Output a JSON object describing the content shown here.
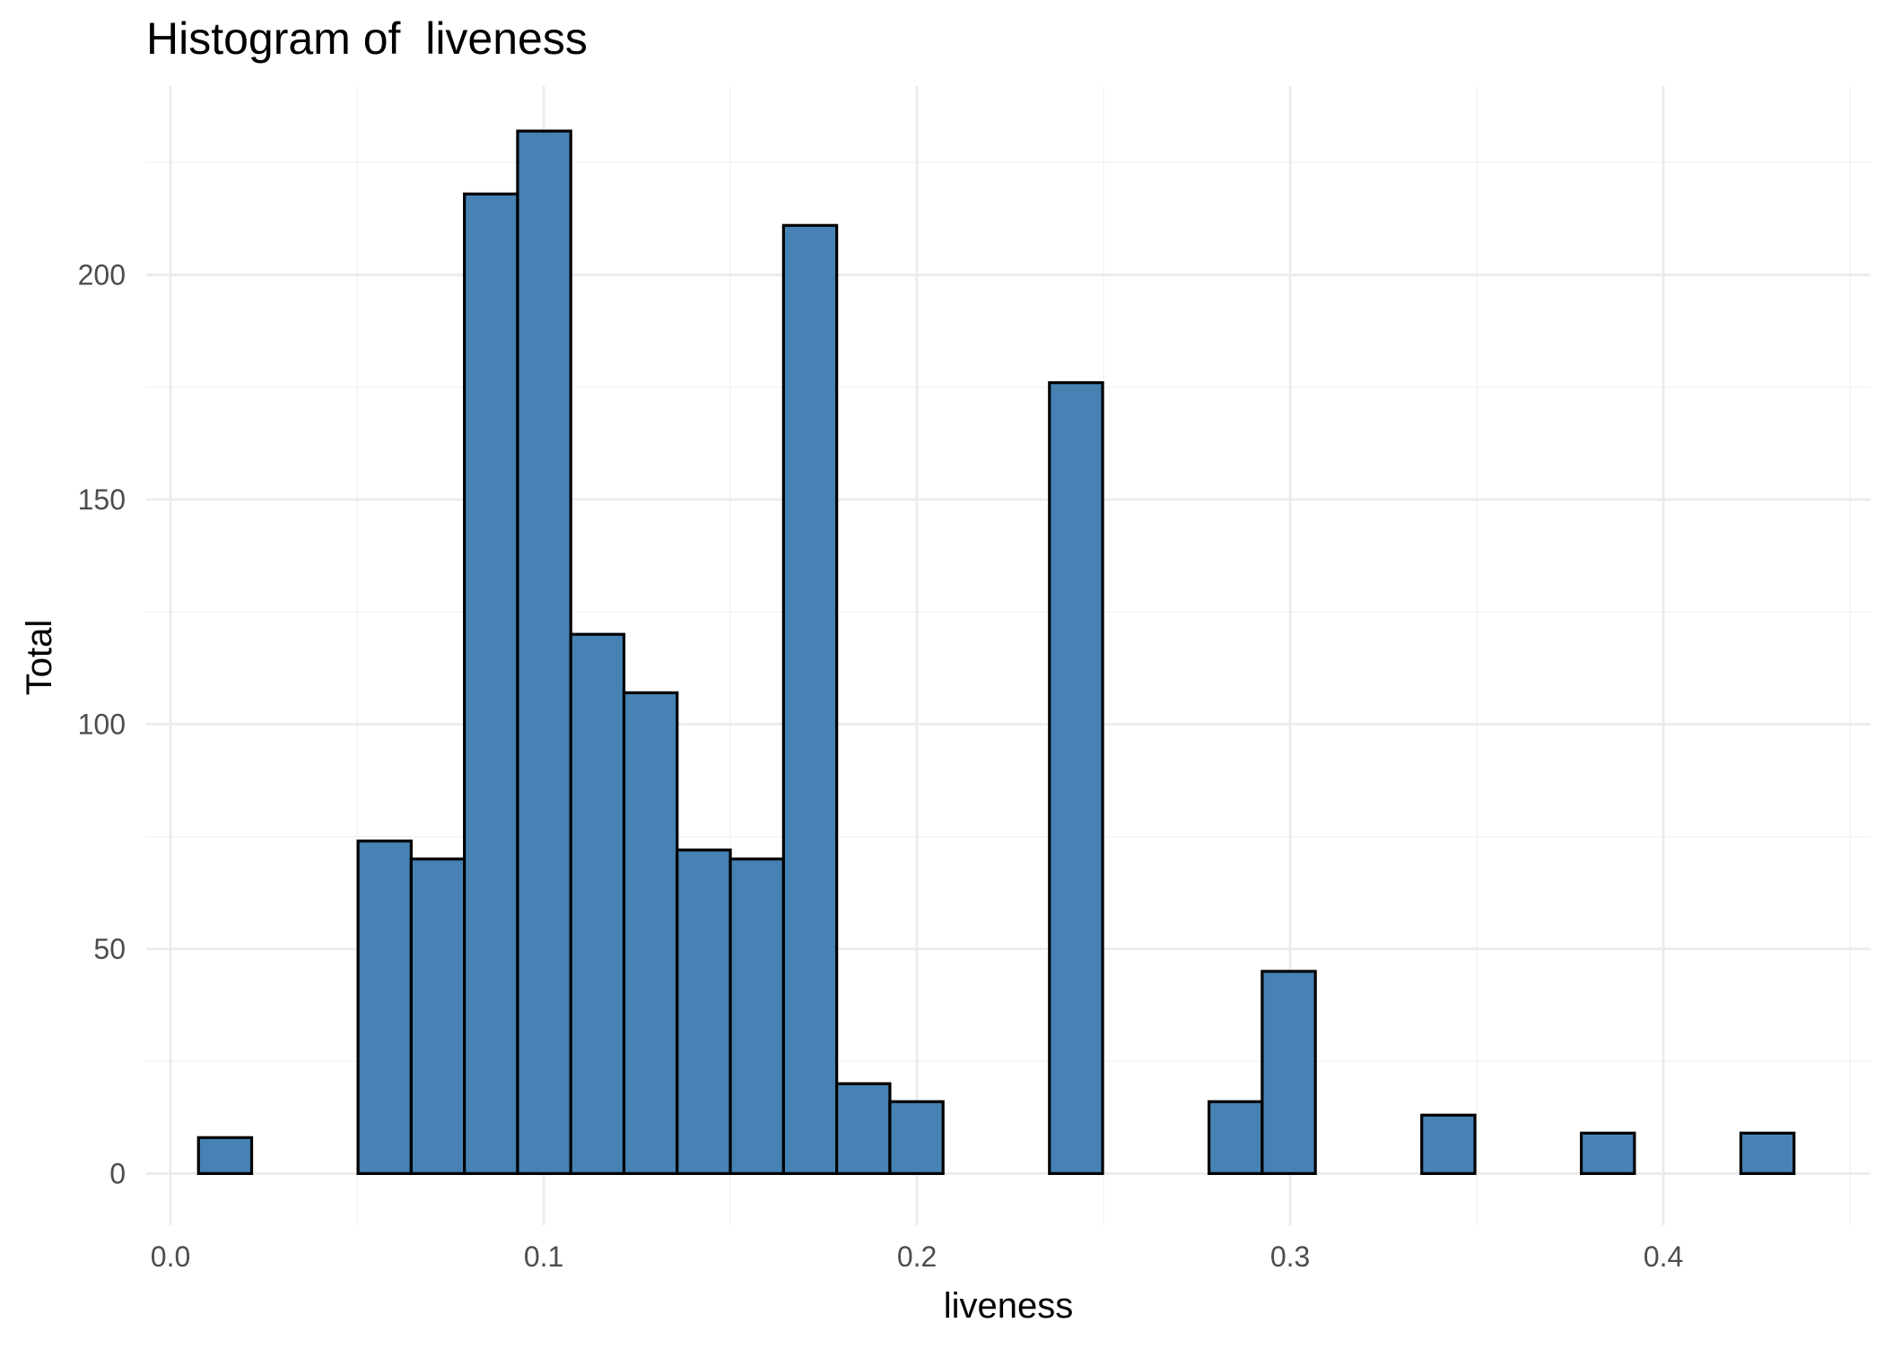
{
  "chart_data": {
    "type": "bar",
    "subtype": "histogram",
    "title": "Histogram of  liveness",
    "xlabel": "liveness",
    "ylabel": "Total",
    "xlim": [
      -0.0065,
      0.4555
    ],
    "ylim": [
      -11.5,
      242
    ],
    "x_ticks": [
      0.0,
      0.1,
      0.2,
      0.3,
      0.4
    ],
    "x_tick_labels": [
      "0.0",
      "0.1",
      "0.2",
      "0.3",
      "0.4"
    ],
    "y_ticks": [
      0,
      50,
      100,
      150,
      200
    ],
    "y_tick_labels": [
      "0",
      "50",
      "100",
      "150",
      "200"
    ],
    "bin_width": 0.01425,
    "bins": [
      {
        "xmin": 0.0075,
        "xmax": 0.02175,
        "count": 8
      },
      {
        "xmin": 0.02175,
        "xmax": 0.036,
        "count": 0
      },
      {
        "xmin": 0.036,
        "xmax": 0.05025,
        "count": 0
      },
      {
        "xmin": 0.05025,
        "xmax": 0.0645,
        "count": 74
      },
      {
        "xmin": 0.0645,
        "xmax": 0.07875,
        "count": 70
      },
      {
        "xmin": 0.07875,
        "xmax": 0.093,
        "count": 218
      },
      {
        "xmin": 0.093,
        "xmax": 0.10725,
        "count": 232
      },
      {
        "xmin": 0.10725,
        "xmax": 0.1215,
        "count": 120
      },
      {
        "xmin": 0.1215,
        "xmax": 0.13575,
        "count": 107
      },
      {
        "xmin": 0.13575,
        "xmax": 0.15,
        "count": 72
      },
      {
        "xmin": 0.15,
        "xmax": 0.16425,
        "count": 70
      },
      {
        "xmin": 0.16425,
        "xmax": 0.1785,
        "count": 211
      },
      {
        "xmin": 0.1785,
        "xmax": 0.19275,
        "count": 20
      },
      {
        "xmin": 0.19275,
        "xmax": 0.207,
        "count": 16
      },
      {
        "xmin": 0.207,
        "xmax": 0.22125,
        "count": 0
      },
      {
        "xmin": 0.22125,
        "xmax": 0.2355,
        "count": 0
      },
      {
        "xmin": 0.2355,
        "xmax": 0.24975,
        "count": 176
      },
      {
        "xmin": 0.24975,
        "xmax": 0.264,
        "count": 0
      },
      {
        "xmin": 0.264,
        "xmax": 0.27825,
        "count": 0
      },
      {
        "xmin": 0.27825,
        "xmax": 0.2925,
        "count": 16
      },
      {
        "xmin": 0.2925,
        "xmax": 0.30675,
        "count": 45
      },
      {
        "xmin": 0.30675,
        "xmax": 0.321,
        "count": 0
      },
      {
        "xmin": 0.321,
        "xmax": 0.33525,
        "count": 0
      },
      {
        "xmin": 0.33525,
        "xmax": 0.3495,
        "count": 13
      },
      {
        "xmin": 0.3495,
        "xmax": 0.36375,
        "count": 0
      },
      {
        "xmin": 0.36375,
        "xmax": 0.378,
        "count": 0
      },
      {
        "xmin": 0.378,
        "xmax": 0.39225,
        "count": 9
      },
      {
        "xmin": 0.39225,
        "xmax": 0.4065,
        "count": 0
      },
      {
        "xmin": 0.4065,
        "xmax": 0.42075,
        "count": 0
      },
      {
        "xmin": 0.42075,
        "xmax": 0.435,
        "count": 9
      }
    ],
    "grid": true,
    "legend": "none",
    "colors": {
      "bar_fill": "#4682B4",
      "bar_stroke": "#000000",
      "grid_major": "#EBEBEB",
      "grid_minor": "#F2F2F2",
      "tick_label": "#4D4D4D",
      "text": "#000000"
    }
  }
}
